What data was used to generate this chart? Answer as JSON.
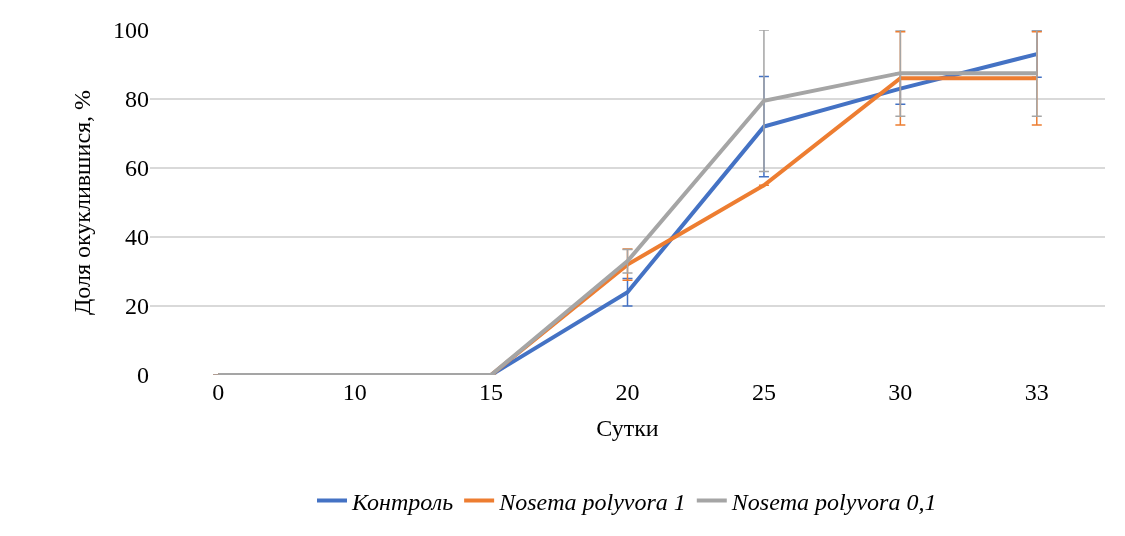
{
  "chart_data": {
    "type": "line",
    "xlabel": "Сутки",
    "ylabel": "Доля окуклившися, %",
    "categories": [
      "0",
      "10",
      "15",
      "20",
      "25",
      "30",
      "33"
    ],
    "series": [
      {
        "name": "Контроль",
        "color": "#4472c4",
        "values": [
          0,
          0,
          0,
          24,
          72,
          83,
          93
        ],
        "errors": [
          null,
          null,
          null,
          4,
          14.5,
          4.5,
          6.7
        ]
      },
      {
        "name": "Nosema polyvora 1",
        "color": "#ed7d31",
        "values": [
          0,
          0,
          0,
          32,
          55,
          86,
          86
        ],
        "errors": [
          null,
          null,
          null,
          4.5,
          null,
          13.5,
          13.5
        ]
      },
      {
        "name": "Nosema polyvora 0,1",
        "color": "#a5a5a5",
        "values": [
          0,
          0,
          0,
          33,
          79.5,
          87.5,
          87.5
        ],
        "errors": [
          null,
          null,
          null,
          3.4,
          20.5,
          12.5,
          12.5
        ]
      }
    ],
    "ylim": [
      0,
      100
    ],
    "yticks": [
      0,
      20,
      40,
      60,
      80,
      100
    ],
    "grid": "y",
    "legend": "bottom",
    "marker": "none",
    "line_style": "solid"
  }
}
